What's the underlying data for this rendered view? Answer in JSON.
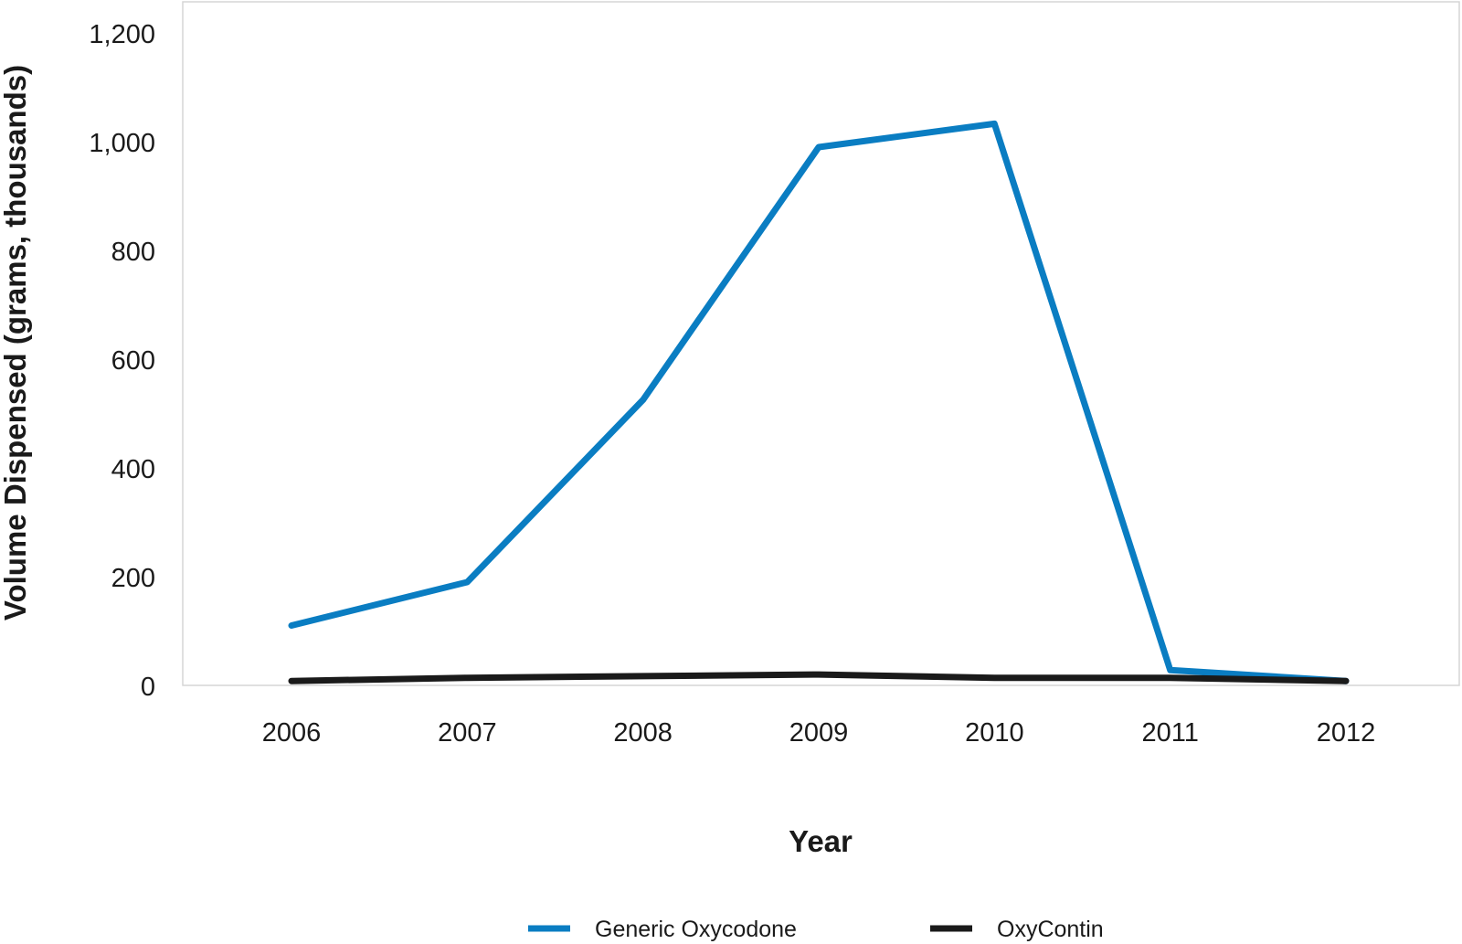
{
  "chart_data": {
    "type": "line",
    "title": "",
    "xlabel": "Year",
    "ylabel": "Volume Dispensed (grams, thousands)",
    "categories": [
      "2006",
      "2007",
      "2008",
      "2009",
      "2010",
      "2011",
      "2012"
    ],
    "ylim": [
      0,
      1200
    ],
    "yticks": [
      0,
      200,
      400,
      600,
      800,
      1000,
      1200
    ],
    "ytick_labels": [
      "0",
      "200",
      "400",
      "600",
      "800",
      "1,000",
      "1,200"
    ],
    "grid": false,
    "legend_position": "bottom",
    "series": [
      {
        "name": "Generic Oxycodone",
        "color": "#0a7dc2",
        "values": [
          110,
          190,
          525,
          990,
          1033,
          28,
          8
        ]
      },
      {
        "name": "OxyContin",
        "color": "#1a1a1a",
        "values": [
          8,
          14,
          17,
          20,
          14,
          14,
          8
        ]
      }
    ]
  }
}
